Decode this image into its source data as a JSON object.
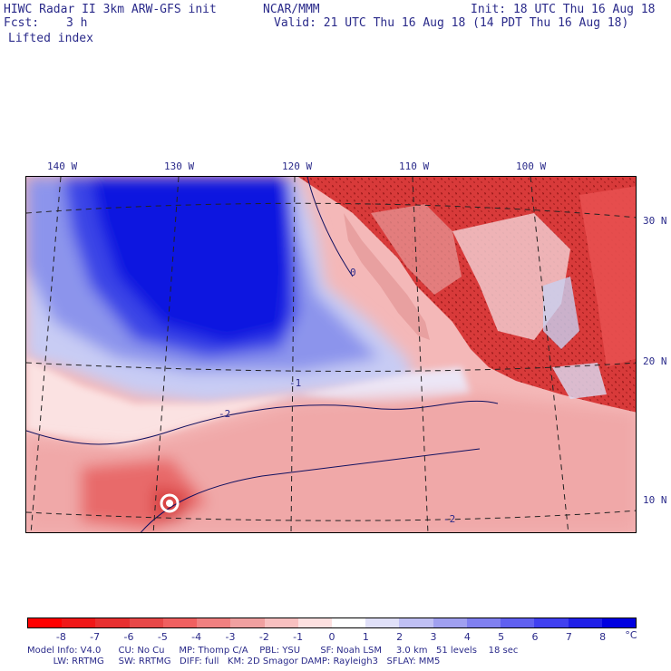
{
  "header": {
    "title": "HIWC Radar II 3km ARW-GFS init",
    "org": "NCAR/MMM",
    "init": "Init: 18 UTC Thu 16 Aug 18",
    "fcst_label": "Fcst:",
    "fcst_value": "3 h",
    "valid": "Valid: 21 UTC Thu 16 Aug 18 (14 PDT Thu 16 Aug 18)",
    "field": "Lifted index"
  },
  "map": {
    "lon_labels": [
      "140 W",
      "130 W",
      "120 W",
      "110 W",
      "100 W"
    ],
    "lat_labels": [
      "30 N",
      "20 N",
      "10 N"
    ],
    "contour_labels": [
      "-2",
      "-2",
      "-1",
      "0"
    ]
  },
  "colorbar": {
    "ticks": [
      "-8",
      "-7",
      "-6",
      "-5",
      "-4",
      "-3",
      "-2",
      "-1",
      "0",
      "1",
      "2",
      "3",
      "4",
      "5",
      "6",
      "7",
      "8"
    ],
    "unit": "°C",
    "colors": [
      "#ff0000",
      "#f01818",
      "#e83030",
      "#e84848",
      "#f06060",
      "#f08080",
      "#f0a0a0",
      "#f8c0c0",
      "#fde0e0",
      "#ffffff",
      "#e0e0f8",
      "#c0c0f4",
      "#a0a0f0",
      "#8080f0",
      "#6060f0",
      "#4040f0",
      "#2020e8",
      "#0000e0"
    ]
  },
  "footer": {
    "line1": "Model Info: V4.0      CU: No Cu     MP: Thomp C/A    PBL: YSU       SF: Noah LSM     3.0 km   51 levels    18 sec",
    "line2": "         LW: RRTMG     SW: RRTMG   DIFF: full   KM: 2D Smagor DAMP: Rayleigh3   SFLAY: MM5"
  }
}
